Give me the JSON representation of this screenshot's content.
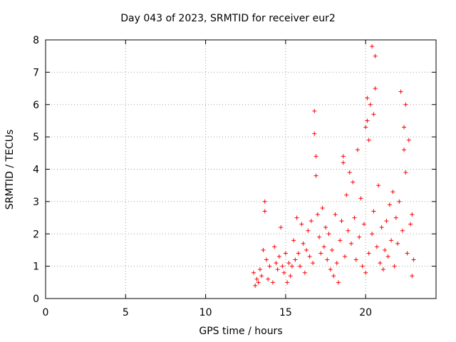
{
  "chart_data": {
    "type": "scatter",
    "title": "Day 043 of 2023, SRMTID for receiver eur2",
    "xlabel": "GPS time / hours",
    "ylabel": "SRMTID / TECUs",
    "xlim": [
      0,
      24.4
    ],
    "ylim": [
      0,
      8
    ],
    "xticks": [
      0,
      5,
      10,
      15,
      20
    ],
    "yticks": [
      0,
      1,
      2,
      3,
      4,
      5,
      6,
      7,
      8
    ],
    "grid": true,
    "marker": "+",
    "color": "#ff0000",
    "series": [
      {
        "name": "eur2",
        "points": [
          [
            13.0,
            0.8
          ],
          [
            13.1,
            0.4
          ],
          [
            13.2,
            0.6
          ],
          [
            13.3,
            0.5
          ],
          [
            13.4,
            0.9
          ],
          [
            13.5,
            0.7
          ],
          [
            13.6,
            1.5
          ],
          [
            13.7,
            2.7
          ],
          [
            13.7,
            3.0
          ],
          [
            13.8,
            1.2
          ],
          [
            13.9,
            0.6
          ],
          [
            14.0,
            1.0
          ],
          [
            14.2,
            0.5
          ],
          [
            14.3,
            1.6
          ],
          [
            14.4,
            1.1
          ],
          [
            14.5,
            0.9
          ],
          [
            14.6,
            1.3
          ],
          [
            14.7,
            2.2
          ],
          [
            14.8,
            1.0
          ],
          [
            14.9,
            0.8
          ],
          [
            15.0,
            1.4
          ],
          [
            15.1,
            0.5
          ],
          [
            15.2,
            1.1
          ],
          [
            15.3,
            0.7
          ],
          [
            15.4,
            1.0
          ],
          [
            15.5,
            1.8
          ],
          [
            15.6,
            1.2
          ],
          [
            15.7,
            2.5
          ],
          [
            15.8,
            1.4
          ],
          [
            15.9,
            1.0
          ],
          [
            16.0,
            2.3
          ],
          [
            16.1,
            1.7
          ],
          [
            16.2,
            0.8
          ],
          [
            16.3,
            1.5
          ],
          [
            16.4,
            2.1
          ],
          [
            16.5,
            1.3
          ],
          [
            16.6,
            2.4
          ],
          [
            16.7,
            1.1
          ],
          [
            16.8,
            5.8
          ],
          [
            16.8,
            5.1
          ],
          [
            16.9,
            3.8
          ],
          [
            16.9,
            4.4
          ],
          [
            17.0,
            2.6
          ],
          [
            17.1,
            1.9
          ],
          [
            17.2,
            1.4
          ],
          [
            17.3,
            2.8
          ],
          [
            17.4,
            1.6
          ],
          [
            17.5,
            2.2
          ],
          [
            17.6,
            1.2
          ],
          [
            17.7,
            2.0
          ],
          [
            17.8,
            0.9
          ],
          [
            17.9,
            1.5
          ],
          [
            18.0,
            0.7
          ],
          [
            18.1,
            2.6
          ],
          [
            18.2,
            1.1
          ],
          [
            18.3,
            0.5
          ],
          [
            18.4,
            1.8
          ],
          [
            18.5,
            2.4
          ],
          [
            18.6,
            4.4
          ],
          [
            18.6,
            4.2
          ],
          [
            18.7,
            1.3
          ],
          [
            18.8,
            3.2
          ],
          [
            18.9,
            2.1
          ],
          [
            19.0,
            3.9
          ],
          [
            19.1,
            1.7
          ],
          [
            19.2,
            3.6
          ],
          [
            19.3,
            2.5
          ],
          [
            19.4,
            1.2
          ],
          [
            19.5,
            4.6
          ],
          [
            19.6,
            1.9
          ],
          [
            19.7,
            3.1
          ],
          [
            19.8,
            1.0
          ],
          [
            19.9,
            2.3
          ],
          [
            20.0,
            5.3
          ],
          [
            20.0,
            0.8
          ],
          [
            20.1,
            6.2
          ],
          [
            20.1,
            5.5
          ],
          [
            20.2,
            4.9
          ],
          [
            20.2,
            1.4
          ],
          [
            20.3,
            6.0
          ],
          [
            20.4,
            7.8
          ],
          [
            20.4,
            2.0
          ],
          [
            20.5,
            5.7
          ],
          [
            20.5,
            2.7
          ],
          [
            20.6,
            7.5
          ],
          [
            20.6,
            6.5
          ],
          [
            20.7,
            1.6
          ],
          [
            20.8,
            3.5
          ],
          [
            20.9,
            1.1
          ],
          [
            21.0,
            2.2
          ],
          [
            21.1,
            0.9
          ],
          [
            21.2,
            1.5
          ],
          [
            21.3,
            2.4
          ],
          [
            21.4,
            1.3
          ],
          [
            21.5,
            2.9
          ],
          [
            21.6,
            1.8
          ],
          [
            21.7,
            3.3
          ],
          [
            21.8,
            1.0
          ],
          [
            21.9,
            2.5
          ],
          [
            22.0,
            1.7
          ],
          [
            22.1,
            3.0
          ],
          [
            22.2,
            6.4
          ],
          [
            22.3,
            2.1
          ],
          [
            22.4,
            5.3
          ],
          [
            22.4,
            4.6
          ],
          [
            22.5,
            6.0
          ],
          [
            22.5,
            3.9
          ],
          [
            22.6,
            1.4
          ],
          [
            22.7,
            4.9
          ],
          [
            22.8,
            2.3
          ],
          [
            22.9,
            0.7
          ],
          [
            22.9,
            2.6
          ],
          [
            23.0,
            1.2
          ]
        ]
      }
    ]
  }
}
